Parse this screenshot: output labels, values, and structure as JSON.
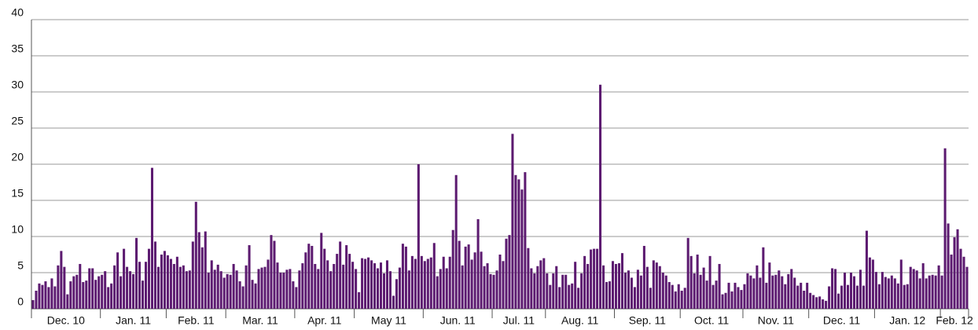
{
  "chart_data": {
    "type": "bar",
    "color": "#5c1a70",
    "grid": true,
    "ylim": [
      0,
      40
    ],
    "yticks": [
      0,
      5,
      10,
      15,
      20,
      25,
      30,
      35,
      40
    ],
    "months": [
      {
        "label": "Dec. 10",
        "values": [
          1.2,
          2.5,
          3.5,
          3.3,
          3.8,
          3,
          4.2,
          3.1,
          6,
          8,
          5.8,
          2,
          3.8,
          4.5,
          4.7,
          6.2,
          3.7,
          3.9,
          5.6,
          5.6,
          4,
          4.5
        ]
      },
      {
        "label": "Jan. 11",
        "values": [
          4.7,
          5.2,
          3,
          3.5,
          6,
          7.8,
          4.5,
          8.3,
          5.8,
          5.2,
          4.8,
          9.8,
          6.5,
          3.9,
          6.5,
          8.3,
          19.5,
          9.3,
          5.8,
          7.5,
          8
        ]
      },
      {
        "label": "Feb. 11",
        "values": [
          7.4,
          6.9,
          6.2,
          7.2,
          5.8,
          6,
          5.2,
          5.3,
          9.3,
          14.8,
          10.6,
          8.5,
          10.7,
          5,
          6.7,
          5.4,
          6.1,
          5.2,
          4.3
        ]
      },
      {
        "label": "Mar. 11",
        "values": [
          4.8,
          4.7,
          6.2,
          5.3,
          3.8,
          3.1,
          6,
          8.8,
          4,
          3.5,
          5.5,
          5.7,
          5.8,
          6.8,
          10.2,
          9.4,
          6.4,
          5,
          5,
          5.4,
          5.5,
          3.8
        ]
      },
      {
        "label": "Apr. 11",
        "values": [
          3,
          5.3,
          6.3,
          7.8,
          9,
          8.7,
          6.2,
          5.5,
          10.5,
          8.3,
          6.7,
          5.2,
          6.2,
          7.6,
          9.3,
          6.1,
          8.8,
          7.6,
          6.5
        ]
      },
      {
        "label": "May 11",
        "values": [
          5.5,
          2.3,
          7,
          6.9,
          7.1,
          6.7,
          6.3,
          5.6,
          6.4,
          4.9,
          6.7,
          5.2,
          1.8,
          4.1,
          5.7,
          9,
          8.6,
          5.3,
          7.3,
          6.9,
          20,
          7.3
        ]
      },
      {
        "label": "Jun. 11",
        "values": [
          6.6,
          6.9,
          7.1,
          9.1,
          4.5,
          5.5,
          7.2,
          5.6,
          7.2,
          10.9,
          18.5,
          9.4,
          6,
          8.6,
          8.9,
          6.8,
          7.8,
          12.4,
          7.9,
          5.9,
          6.3,
          4.8
        ]
      },
      {
        "label": "Jul. 11",
        "values": [
          4.7,
          5.3,
          7.5,
          6.6,
          9.7,
          10.2,
          24.2,
          18.5,
          17.9,
          16.5,
          18.9,
          8.4,
          5.6,
          4.9,
          5.9,
          6.7,
          7
        ]
      },
      {
        "label": "Aug. 11",
        "values": [
          4.9,
          3.3,
          4.9,
          5.9,
          3,
          4.7,
          4.7,
          3.3,
          3.5,
          6.5,
          2.9,
          4.9,
          7.3,
          6.2,
          8.2,
          8.3,
          8.3,
          31,
          6,
          3.7,
          3.8,
          6.6
        ]
      },
      {
        "label": "Sep. 11",
        "values": [
          6.2,
          6.3,
          7.7,
          5,
          5.3,
          4.3,
          3,
          5.4,
          4.6,
          8.7,
          5.8,
          2.9,
          6.7,
          6.4,
          5.9,
          5,
          4.6,
          3.7,
          3.3,
          2.4,
          3.4
        ]
      },
      {
        "label": "Oct. 11",
        "values": [
          2.5,
          2.9,
          9.8,
          7.3,
          4.9,
          7.5,
          4.7,
          5.7,
          3.9,
          7.3,
          3.3,
          3.9,
          6.2,
          2,
          2.2,
          3.6,
          2.4,
          3.6,
          3,
          2.6
        ]
      },
      {
        "label": "Nov. 11",
        "values": [
          3.4,
          4.9,
          4.6,
          4.2,
          6,
          4.3,
          8.5,
          3.6,
          6.4,
          4.6,
          4.7,
          5.3,
          4.5,
          3.4,
          4.8,
          5.5,
          4.3,
          3.2,
          3.6,
          2.5,
          3.6
        ]
      },
      {
        "label": "Dec. 11",
        "values": [
          2.2,
          1.9,
          1.6,
          1.7,
          1.3,
          1.1,
          3.1,
          5.6,
          5.5,
          2.1,
          3.2,
          5,
          3.3,
          5,
          4.5,
          3.2,
          5.4,
          3.2,
          10.8,
          7.1,
          6.8
        ]
      },
      {
        "label": "Jan. 12",
        "values": [
          5.1,
          3.4,
          5.1,
          4.4,
          4.2,
          4.6,
          4.2,
          3.5,
          6.8,
          3.3,
          3.4,
          5.8,
          5.5,
          5.3,
          4.2,
          6.3,
          4.2,
          4.6,
          4.7,
          4.6,
          6
        ]
      },
      {
        "label": "Feb. 12",
        "values": [
          4.6,
          22.2,
          11.8,
          7.5,
          9.9,
          11,
          8.3,
          7.2,
          5.8
        ]
      }
    ]
  }
}
